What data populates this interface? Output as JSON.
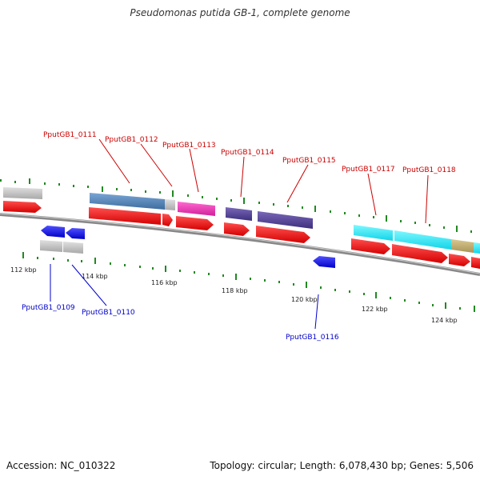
{
  "title": "Pseudomonas putida GB-1, complete genome",
  "footer": {
    "accession": "Accession: NC_010322",
    "summary": "Topology: circular; Length: 6,078,430 bp; Genes: 5,506"
  },
  "ruler": {
    "labels": [
      "112 kbp",
      "114 kbp",
      "116 kbp",
      "118 kbp",
      "120 kbp",
      "122 kbp",
      "124 kbp"
    ]
  },
  "colors": {
    "forward_label": "#cc0000",
    "reverse_label": "#0000cc",
    "cds_forward": "#ee0000",
    "cds_reverse": "#0000ee",
    "backbone": "#888888",
    "tick": "#228822"
  },
  "gene_labels": {
    "forward": [
      "PputGB1_0111",
      "PputGB1_0112",
      "PputGB1_0113",
      "PputGB1_0114",
      "PputGB1_0115",
      "PputGB1_0117",
      "PputGB1_0118"
    ],
    "reverse": [
      "PputGB1_0109",
      "PputGB1_0110",
      "PputGB1_0116"
    ]
  }
}
